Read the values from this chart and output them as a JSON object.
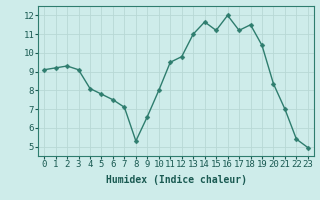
{
  "x": [
    0,
    1,
    2,
    3,
    4,
    5,
    6,
    7,
    8,
    9,
    10,
    11,
    12,
    13,
    14,
    15,
    16,
    17,
    18,
    19,
    20,
    21,
    22,
    23
  ],
  "y": [
    9.1,
    9.2,
    9.3,
    9.1,
    8.1,
    7.8,
    7.5,
    7.1,
    5.3,
    6.6,
    8.0,
    9.5,
    9.8,
    11.0,
    11.65,
    11.2,
    12.0,
    11.2,
    11.5,
    10.4,
    8.35,
    7.0,
    5.4,
    4.95
  ],
  "line_color": "#2e7d6e",
  "marker_color": "#2e7d6e",
  "bg_color": "#ceecea",
  "grid_color": "#b8d8d5",
  "xlabel": "Humidex (Indice chaleur)",
  "xlabel_fontsize": 7,
  "tick_fontsize": 6.5,
  "ylim": [
    4.5,
    12.5
  ],
  "yticks": [
    5,
    6,
    7,
    8,
    9,
    10,
    11,
    12
  ],
  "xlim": [
    -0.5,
    23.5
  ],
  "xticks": [
    0,
    1,
    2,
    3,
    4,
    5,
    6,
    7,
    8,
    9,
    10,
    11,
    12,
    13,
    14,
    15,
    16,
    17,
    18,
    19,
    20,
    21,
    22,
    23
  ],
  "line_width": 1.0,
  "marker_size": 2.5
}
